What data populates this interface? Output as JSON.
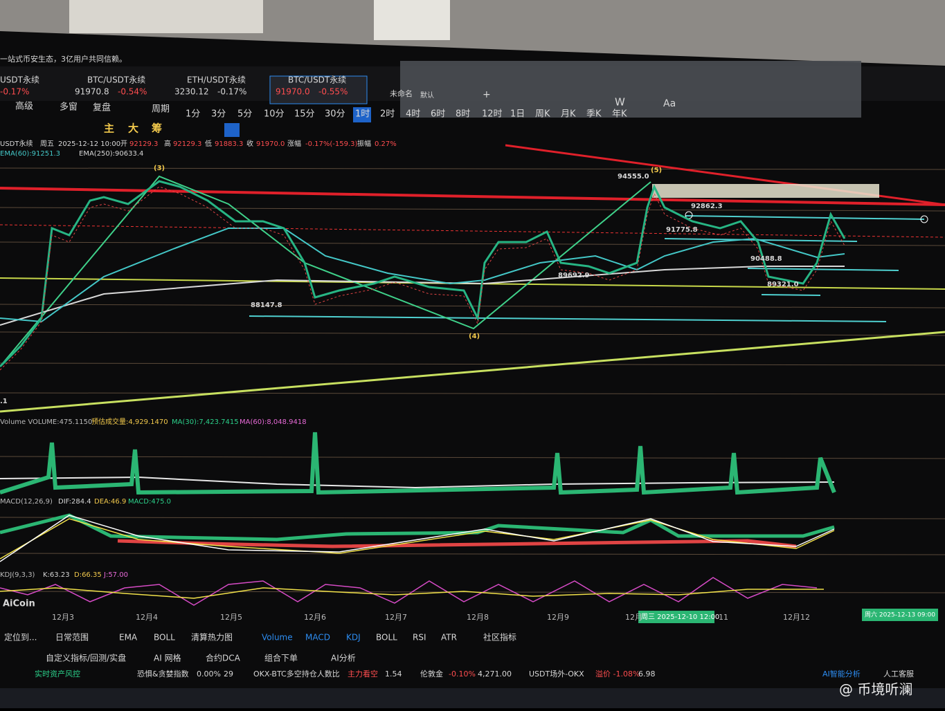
{
  "banner": "一站式币安生态，3亿用户共同信赖。",
  "tabs": [
    {
      "symbol": "USDT永续",
      "change": "-0.17%"
    },
    {
      "symbol": "BTC/USDT永续",
      "price": "91970.8",
      "change": "-0.54%"
    },
    {
      "symbol": "ETH/USDT永续",
      "price": "3230.12",
      "change": "-0.17%"
    },
    {
      "symbol": "BTC/USDT永续",
      "price": "91970.0",
      "change": "-0.55%"
    }
  ],
  "layout": {
    "name": "未命名",
    "preset": "默认",
    "add": "+"
  },
  "menu": [
    "高级",
    "多窗",
    "复盘",
    "周期"
  ],
  "periods": [
    "1分",
    "3分",
    "5分",
    "10分",
    "15分",
    "30分",
    "1时",
    "2时",
    "4时",
    "6时",
    "8时",
    "12时",
    "1日",
    "周K",
    "月K",
    "季K",
    "年K"
  ],
  "tools": [
    "主",
    "大",
    "筹"
  ],
  "toolbar_glyphs": [
    "W",
    "Aa"
  ],
  "ohlc": {
    "symbol": "USDT永续",
    "day": "周五",
    "time": "2025-12-12 10:00",
    "open_label": "开",
    "open": "92129.3",
    "high_label": "高",
    "high": "92129.3",
    "low_label": "低",
    "low": "91883.3",
    "close_label": "收",
    "close": "91970.0",
    "change_label": "涨幅",
    "change": "-0.17%(-159.3)",
    "amp_label": "振幅",
    "amp": "0.27%"
  },
  "ema": [
    "EMA(60):91251.3",
    "EMA(250):90633.4"
  ],
  "annotations": [
    "(3)",
    "94555.0",
    "(5)",
    "92862.3",
    "91775.8",
    "90488.8",
    "89692.9",
    "89321.0",
    "88147.8",
    "(4)",
    ".1"
  ],
  "volume_legend": [
    "Volume VOLUME:475.1150",
    "预估成交量:4,929.1470",
    "MA(30):7,423.7415",
    "MA(60):8,048.9418"
  ],
  "macd_legend": [
    "MACD(12,26,9)",
    "DIF:284.4",
    "DEA:46.9",
    "MACD:475.0"
  ],
  "kdj_legend": [
    "KDJ(9,3,3)",
    "K:63.23",
    "D:66.35",
    "J:57.00"
  ],
  "logo": "AiCoin",
  "dates": [
    "12月3",
    "12月4",
    "12月5",
    "12月6",
    "12月7",
    "12月8",
    "12月9",
    "12月",
    "11",
    "12月12"
  ],
  "crosshair": [
    "周三 2025-12-10 12:00",
    "周六 2025-12-13 09:00"
  ],
  "indicator_tabs": [
    "定位到...",
    "日常范围",
    "EMA",
    "BOLL",
    "清算热力图",
    "Volume",
    "MACD",
    "KDJ",
    "BOLL",
    "RSI",
    "ATR",
    "社区指标"
  ],
  "feature_tabs": [
    "自定义指标/回测/实盘",
    "AI 网格",
    "合约DCA",
    "组合下单",
    "AI分析"
  ],
  "status": [
    "实时资产风控",
    "恐惧&贪婪指数",
    "0.00%",
    "29",
    "OKX-BTC多空持仓人数比",
    "主力看空",
    "1.54",
    "伦敦金",
    "-0.10%",
    "4,271.00",
    "USDT场外-OKX",
    "溢价 -1.08%",
    "6.98",
    "AI智能分析",
    "人工客服"
  ],
  "watermark": "@ 币境听澜"
}
